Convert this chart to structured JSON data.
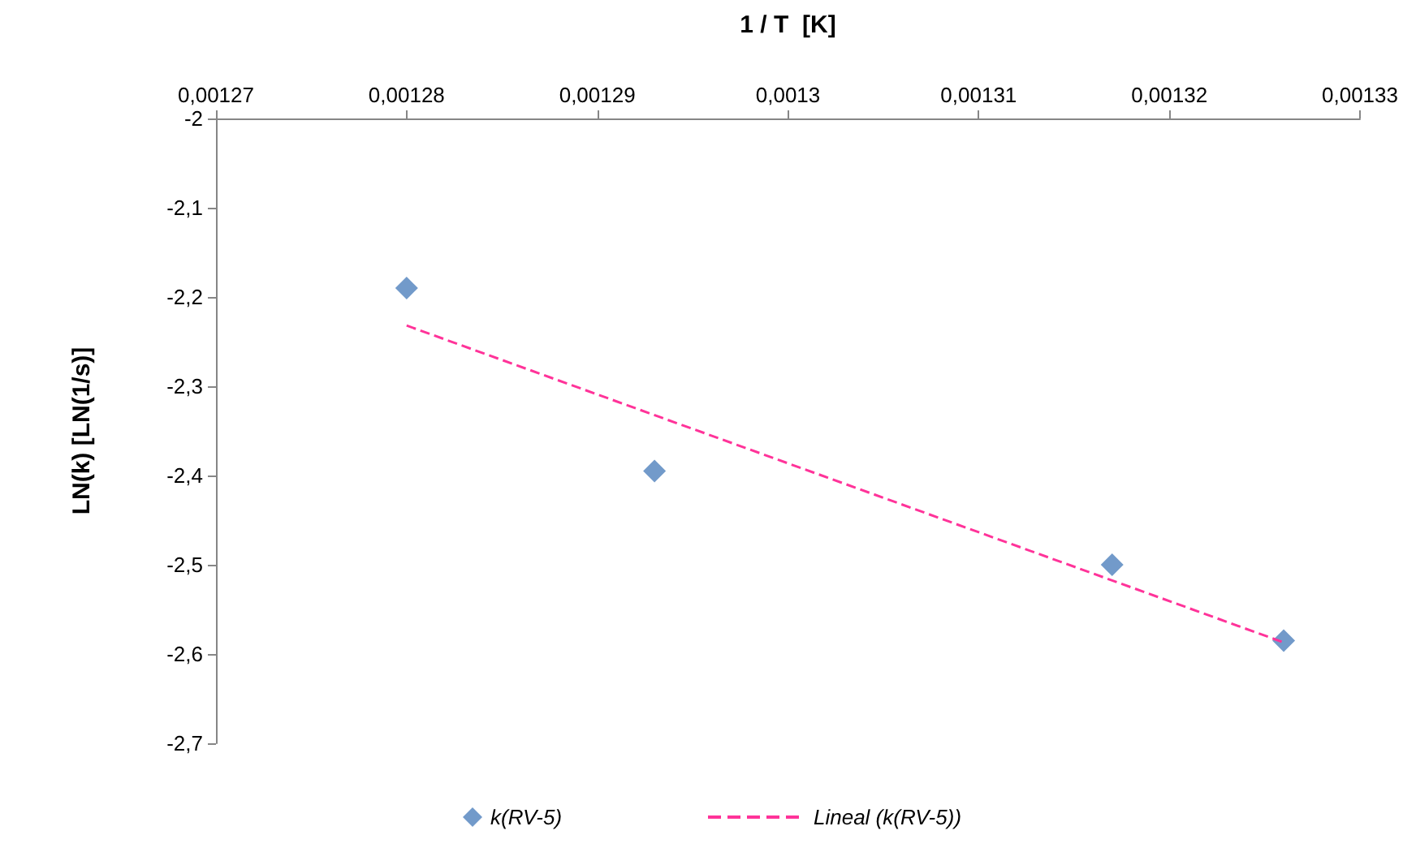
{
  "chart_data": {
    "type": "scatter",
    "xlabel": "1 / T  [K]",
    "ylabel": "LN(k) [LN(1/s)]",
    "xlim": [
      0.00127,
      0.00133
    ],
    "xticks": [
      {
        "value": 0.00127,
        "label": "0,00127"
      },
      {
        "value": 0.00128,
        "label": "0,00128"
      },
      {
        "value": 0.00129,
        "label": "0,00129"
      },
      {
        "value": 0.0013,
        "label": "0,0013"
      },
      {
        "value": 0.00131,
        "label": "0,00131"
      },
      {
        "value": 0.00132,
        "label": "0,00132"
      },
      {
        "value": 0.00133,
        "label": "0,00133"
      }
    ],
    "ylim": [
      -2.7,
      -2
    ],
    "yticks": [
      {
        "value": -2.7,
        "label": "-2,7"
      },
      {
        "value": -2.6,
        "label": "-2,6"
      },
      {
        "value": -2.5,
        "label": "-2,5"
      },
      {
        "value": -2.4,
        "label": "-2,4"
      },
      {
        "value": -2.3,
        "label": "-2,3"
      },
      {
        "value": -2.2,
        "label": "-2,2"
      },
      {
        "value": -2.1,
        "label": "-2,1"
      },
      {
        "value": -2,
        "label": "-2"
      }
    ],
    "legend": "bottom",
    "grid": false,
    "series": [
      {
        "name": "k(RV-5)",
        "marker": "diamond",
        "color": "#4f81bd",
        "x": [
          0.00128,
          0.001293,
          0.001317,
          0.001326
        ],
        "values": [
          -2.19,
          -2.395,
          -2.5,
          -2.585
        ]
      },
      {
        "name": "Lineal (k(RV-5))",
        "type": "line",
        "marker": "none",
        "line_style": "dashed",
        "color": "#ff3399",
        "x": [
          0.00128,
          0.001326
        ],
        "values": [
          -2.232,
          -2.587
        ]
      }
    ]
  }
}
